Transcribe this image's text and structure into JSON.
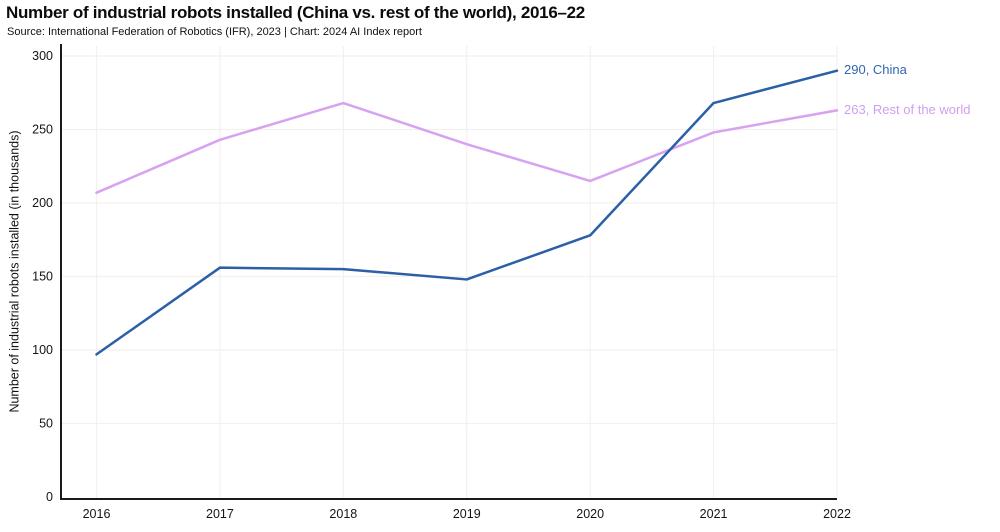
{
  "page": {
    "title": "Number of industrial robots installed (China vs. rest of the world), 2016–22",
    "subtitle": "Source: International Federation of Robotics (IFR), 2023 | Chart: 2024 AI Index report"
  },
  "colors": {
    "axis": "#1a1a1a",
    "grid": "#f3f1ef",
    "tick_text": "#141414",
    "title_text": "#0b0b0b"
  },
  "chart_data": {
    "type": "line",
    "title": "Number of industrial robots installed (China vs. rest of the world), 2016–22",
    "subtitle": "Source: International Federation of Robotics (IFR), 2023 | Chart: 2024 AI Index report",
    "categories": [
      "2016",
      "2017",
      "2018",
      "2019",
      "2020",
      "2021",
      "2022"
    ],
    "series": [
      {
        "name": "Rest of the world",
        "values": [
          207,
          243,
          268,
          240,
          215,
          248,
          263
        ],
        "color": "#d7a2f0",
        "label_color": "#cf9ff0",
        "end_label": "263, Rest of the world"
      },
      {
        "name": "China",
        "values": [
          97,
          156,
          155,
          148,
          178,
          268,
          290
        ],
        "color": "#2b5fa6",
        "label_color": "#3066b3",
        "end_label": "290, China"
      }
    ],
    "xlabel": "",
    "ylabel": "Number of industrial robots installed (in thousands)",
    "yticks": [
      0,
      50,
      100,
      150,
      200,
      250,
      300
    ],
    "ylim": [
      0,
      300
    ],
    "grid": true,
    "legend_position": "end-labels-right"
  }
}
